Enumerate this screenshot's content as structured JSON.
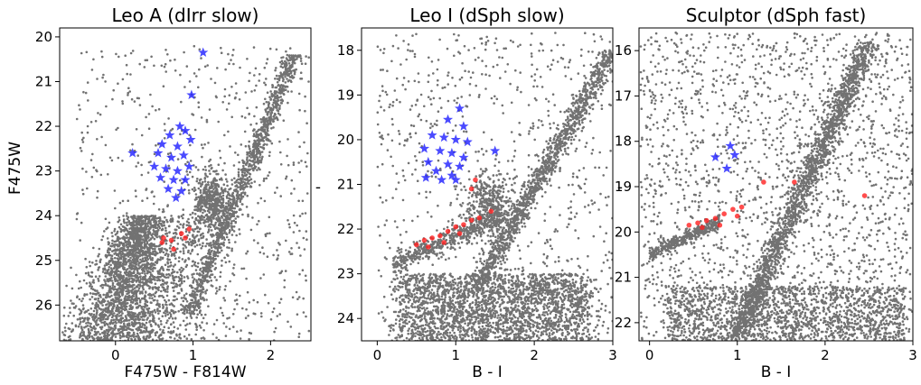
{
  "chart_data": [
    {
      "type": "scatter",
      "title": "Leo A (dIrr slow)",
      "xlabel": "F475W - F814W",
      "ylabel": "F475W",
      "xlim": [
        -0.72,
        2.52
      ],
      "ylim": [
        26.8,
        19.8
      ],
      "y_inverted": true,
      "xticks": [
        0,
        1,
        2
      ],
      "yticks": [
        20,
        21,
        22,
        23,
        24,
        25,
        26
      ],
      "point_color": "#595959",
      "series": [
        {
          "marker": "star",
          "color": "#2b2bff",
          "points": [
            [
              1.13,
              20.35
            ],
            [
              0.98,
              21.3
            ],
            [
              0.83,
              22.0
            ],
            [
              0.7,
              22.2
            ],
            [
              0.9,
              22.1
            ],
            [
              0.6,
              22.4
            ],
            [
              0.8,
              22.45
            ],
            [
              0.97,
              22.3
            ],
            [
              0.55,
              22.6
            ],
            [
              0.72,
              22.7
            ],
            [
              0.88,
              22.65
            ],
            [
              0.22,
              22.6
            ],
            [
              0.5,
              22.9
            ],
            [
              0.65,
              22.95
            ],
            [
              0.8,
              23.0
            ],
            [
              0.95,
              22.9
            ],
            [
              0.58,
              23.15
            ],
            [
              0.75,
              23.2
            ],
            [
              0.9,
              23.2
            ],
            [
              0.68,
              23.4
            ],
            [
              0.85,
              23.45
            ],
            [
              0.78,
              23.6
            ]
          ]
        },
        {
          "marker": "dot",
          "color": "#ff2020",
          "points": [
            [
              0.6,
              24.6
            ],
            [
              0.72,
              24.55
            ],
            [
              0.85,
              24.4
            ],
            [
              0.9,
              24.5
            ],
            [
              0.75,
              24.75
            ],
            [
              0.95,
              24.3
            ],
            [
              0.62,
              24.5
            ]
          ]
        }
      ]
    },
    {
      "type": "scatter",
      "title": "Leo I (dSph slow)",
      "xlabel": "B - I",
      "ylabel": "",
      "xlim": [
        -0.2,
        3.0
      ],
      "ylim": [
        24.5,
        17.5
      ],
      "y_inverted": true,
      "xticks": [
        0,
        1,
        2,
        3
      ],
      "yticks": [
        18,
        19,
        20,
        21,
        22,
        23,
        24
      ],
      "point_color": "#595959",
      "series": [
        {
          "marker": "star",
          "color": "#2b2bff",
          "points": [
            [
              1.05,
              19.3
            ],
            [
              0.9,
              19.55
            ],
            [
              1.1,
              19.7
            ],
            [
              0.7,
              19.9
            ],
            [
              0.85,
              19.95
            ],
            [
              1.0,
              20.0
            ],
            [
              1.15,
              20.05
            ],
            [
              0.6,
              20.2
            ],
            [
              0.8,
              20.25
            ],
            [
              0.95,
              20.3
            ],
            [
              1.1,
              20.4
            ],
            [
              0.65,
              20.5
            ],
            [
              0.9,
              20.55
            ],
            [
              1.05,
              20.6
            ],
            [
              0.75,
              20.7
            ],
            [
              0.95,
              20.8
            ],
            [
              0.62,
              20.85
            ],
            [
              0.82,
              20.9
            ],
            [
              1.0,
              20.9
            ],
            [
              1.5,
              20.25
            ]
          ]
        },
        {
          "marker": "dot",
          "color": "#ff2020",
          "points": [
            [
              0.5,
              22.35
            ],
            [
              0.6,
              22.25
            ],
            [
              0.7,
              22.2
            ],
            [
              0.8,
              22.15
            ],
            [
              0.9,
              22.05
            ],
            [
              1.0,
              21.95
            ],
            [
              1.1,
              21.9
            ],
            [
              1.2,
              21.8
            ],
            [
              0.65,
              22.4
            ],
            [
              0.85,
              22.3
            ],
            [
              1.05,
              22.1
            ],
            [
              1.3,
              21.75
            ],
            [
              1.2,
              21.1
            ],
            [
              1.25,
              20.9
            ],
            [
              1.45,
              21.6
            ]
          ]
        }
      ]
    },
    {
      "type": "scatter",
      "title": "Sculptor (dSph fast)",
      "xlabel": "B - I",
      "ylabel": "",
      "xlim": [
        -0.12,
        3.0
      ],
      "ylim": [
        22.4,
        15.5
      ],
      "y_inverted": true,
      "xticks": [
        0,
        1,
        2,
        3
      ],
      "yticks": [
        16,
        17,
        18,
        19,
        20,
        21,
        22
      ],
      "point_color": "#595959",
      "series": [
        {
          "marker": "star",
          "color": "#2b2bff",
          "points": [
            [
              0.92,
              18.1
            ],
            [
              0.97,
              18.3
            ],
            [
              0.75,
              18.35
            ],
            [
              0.88,
              18.6
            ]
          ]
        },
        {
          "marker": "dot",
          "color": "#ff2020",
          "points": [
            [
              0.45,
              19.85
            ],
            [
              0.55,
              19.8
            ],
            [
              0.65,
              19.75
            ],
            [
              0.75,
              19.7
            ],
            [
              0.85,
              19.6
            ],
            [
              0.95,
              19.5
            ],
            [
              1.05,
              19.45
            ],
            [
              0.6,
              19.9
            ],
            [
              0.8,
              19.85
            ],
            [
              1.0,
              19.65
            ],
            [
              1.3,
              18.9
            ],
            [
              1.65,
              18.9
            ],
            [
              2.45,
              19.2
            ]
          ]
        }
      ]
    }
  ],
  "standalone_marks": [
    "-",
    "-"
  ]
}
